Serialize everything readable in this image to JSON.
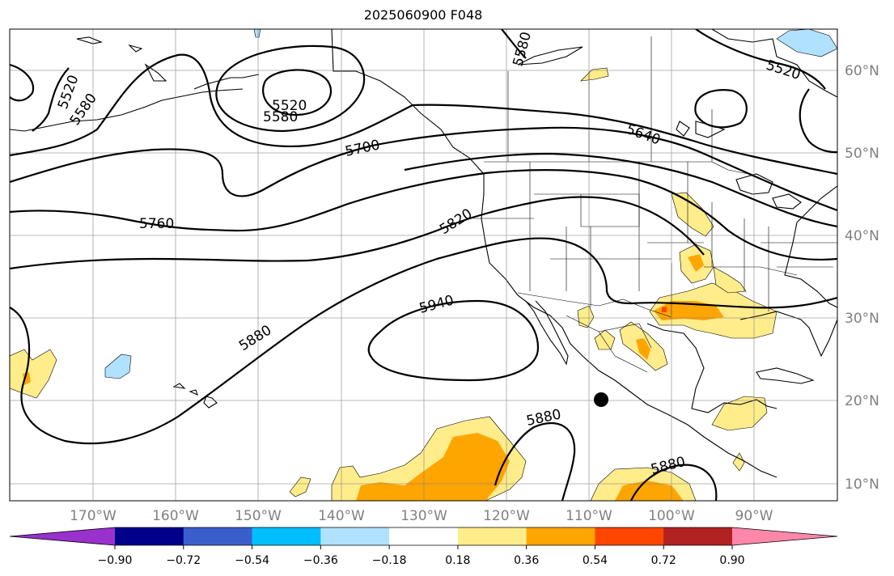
{
  "title": "2025060900 F048",
  "lon_labels": [
    "170°W",
    "160°W",
    "150°W",
    "140°W",
    "130°W",
    "120°W",
    "110°W",
    "100°W",
    "90°W"
  ],
  "lat_labels": [
    "60°N",
    "50°N",
    "40°N",
    "30°N",
    "20°N",
    "10°N"
  ],
  "contour_labels": [
    "5520",
    "5580",
    "5520",
    "5580",
    "5580",
    "5520",
    "5700",
    "5640",
    "5760",
    "5820",
    "5940",
    "5880",
    "5880",
    "5880"
  ],
  "colorbar": {
    "colors": [
      "#9932cc",
      "#00008b",
      "#3a5fcd",
      "#00bfff",
      "#b0e2ff",
      "#ffffff",
      "#ffec8b",
      "#ffa500",
      "#ff4500",
      "#b22222",
      "#ff88aa"
    ],
    "tick_labels": [
      "−0.90",
      "−0.72",
      "−0.54",
      "−0.36",
      "−0.18",
      "0.18",
      "0.36",
      "0.54",
      "0.72",
      "0.90"
    ]
  }
}
